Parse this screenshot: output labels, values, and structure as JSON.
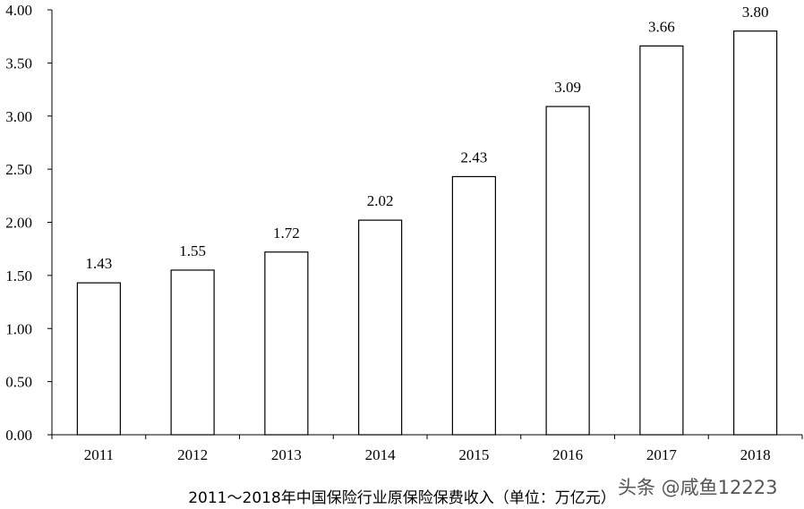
{
  "chart_data": {
    "type": "bar",
    "categories": [
      "2011",
      "2012",
      "2013",
      "2014",
      "2015",
      "2016",
      "2017",
      "2018"
    ],
    "values": [
      1.43,
      1.55,
      1.72,
      2.02,
      2.43,
      3.09,
      3.66,
      3.8
    ],
    "value_labels": [
      "1.43",
      "1.55",
      "1.72",
      "2.02",
      "2.43",
      "3.09",
      "3.66",
      "3.80"
    ],
    "y_ticks": [
      "0.00",
      "0.50",
      "1.00",
      "1.50",
      "2.00",
      "2.50",
      "3.00",
      "3.50",
      "4.00"
    ],
    "ylim": [
      0,
      4
    ],
    "title": "2011～2018年中国保险行业原保险保费收入（单位：万亿元）",
    "xlabel": "",
    "ylabel": "",
    "grid": false,
    "bar_fill": "#ffffff",
    "bar_stroke": "#000000"
  },
  "watermark": "头条 @咸鱼12223"
}
